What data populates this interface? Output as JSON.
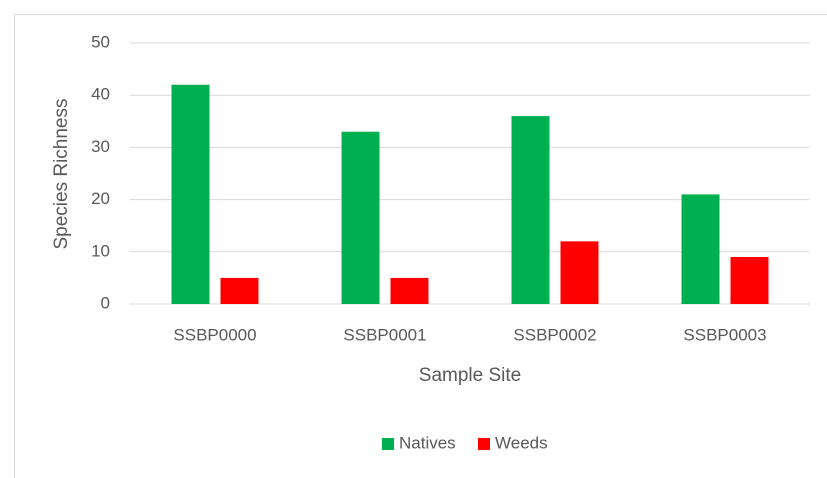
{
  "chart_data": {
    "type": "bar",
    "categories": [
      "SSBP0000",
      "SSBP0001",
      "SSBP0002",
      "SSBP0003"
    ],
    "series": [
      {
        "name": "Natives",
        "color": "#00b050",
        "values": [
          42,
          33,
          36,
          21
        ]
      },
      {
        "name": "Weeds",
        "color": "#ff0000",
        "values": [
          5,
          5,
          12,
          9
        ]
      }
    ],
    "x_label": "Sample Site",
    "y_label": "Species Richness",
    "ylim": [
      0,
      50
    ],
    "yticks": [
      0,
      10,
      20,
      30,
      40,
      50
    ],
    "grid": true,
    "legend": "bottom"
  }
}
